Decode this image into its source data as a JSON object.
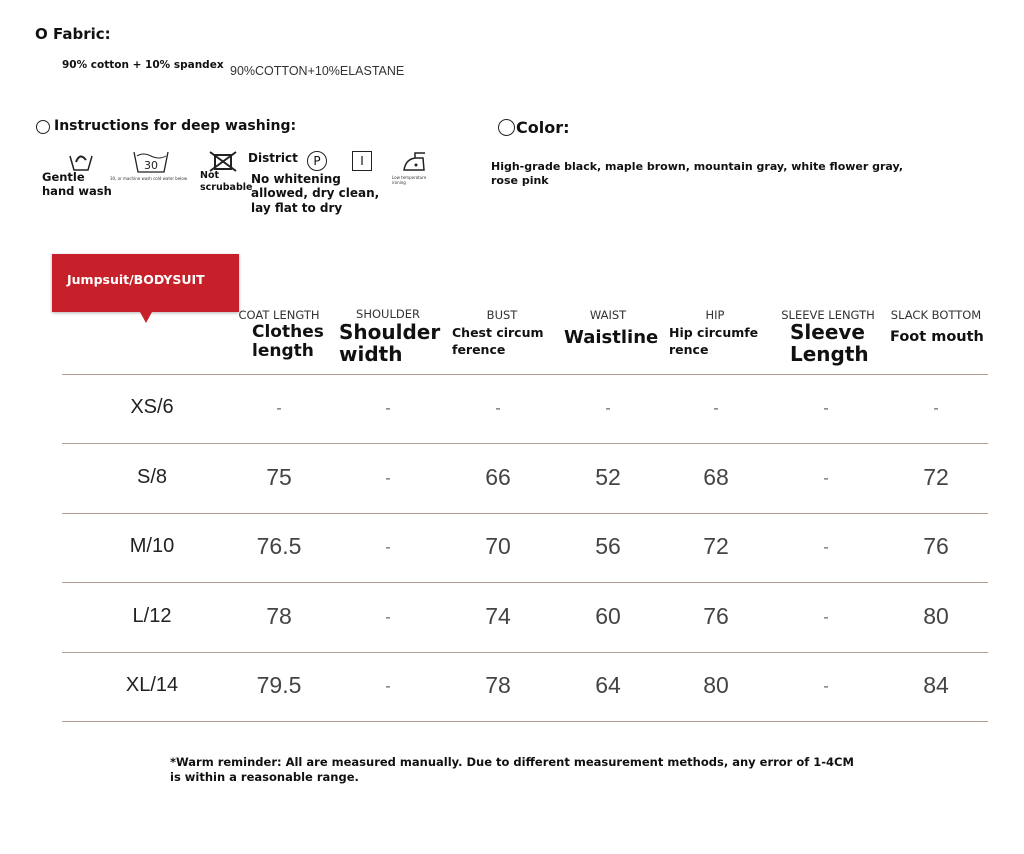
{
  "fabric": {
    "title": "O Fabric:",
    "cn": "90% cotton + 10% spandex",
    "en": "90%COTTON+10%ELASTANE"
  },
  "washing": {
    "title": "Instructions for deep washing:",
    "items": [
      {
        "icon": "hand-wash-icon",
        "label": "Gentle hand wash"
      },
      {
        "icon": "wash-30-icon",
        "label": "30, or machine wash cold water below",
        "temp": "30"
      },
      {
        "icon": "do-not-tumble-icon",
        "label": "Not scrubable"
      },
      {
        "icon": "dry-clean-p-icon",
        "label": "District",
        "symbol": "P"
      },
      {
        "icon": "dry-flat-icon",
        "label": "No whitening allowed, dry clean, lay flat to dry",
        "symbol": "I"
      },
      {
        "icon": "low-iron-icon",
        "label": "Low temperature ironing"
      }
    ]
  },
  "color": {
    "title": "Color:",
    "value": "High-grade black, maple brown, mountain gray, white flower gray, rose pink"
  },
  "tag": {
    "label": "Jumpsuit/BODYSUIT",
    "color": "#c8202a"
  },
  "headers": [
    {
      "en": "COAT LENGTH",
      "label": "Clothes length"
    },
    {
      "en": "SHOULDER",
      "label": "Shoulder width"
    },
    {
      "en": "BUST",
      "label": "Chest circumference"
    },
    {
      "en": "WAIST",
      "label": "Waistline"
    },
    {
      "en": "HIP",
      "label": "Hip circumference"
    },
    {
      "en": "SLEEVE LENGTH",
      "label": "Sleeve Length"
    },
    {
      "en": "SLACK BOTTOM",
      "label": "Foot mouth"
    }
  ],
  "rows": [
    {
      "size": "XS/6",
      "values": [
        "-",
        "-",
        "-",
        "-",
        "-",
        "-",
        "-"
      ]
    },
    {
      "size": "S/8",
      "values": [
        "75",
        "-",
        "66",
        "52",
        "68",
        "-",
        "72"
      ]
    },
    {
      "size": "M/10",
      "values": [
        "76.5",
        "-",
        "70",
        "56",
        "72",
        "-",
        "76"
      ]
    },
    {
      "size": "L/12",
      "values": [
        "78",
        "-",
        "74",
        "60",
        "76",
        "-",
        "80"
      ]
    },
    {
      "size": "XL/14",
      "values": [
        "79.5",
        "-",
        "78",
        "64",
        "80",
        "-",
        "84"
      ]
    }
  ],
  "reminder": "*Warm reminder: All are measured manually. Due to different measurement methods, any error of 1-4CM is within a reasonable range."
}
